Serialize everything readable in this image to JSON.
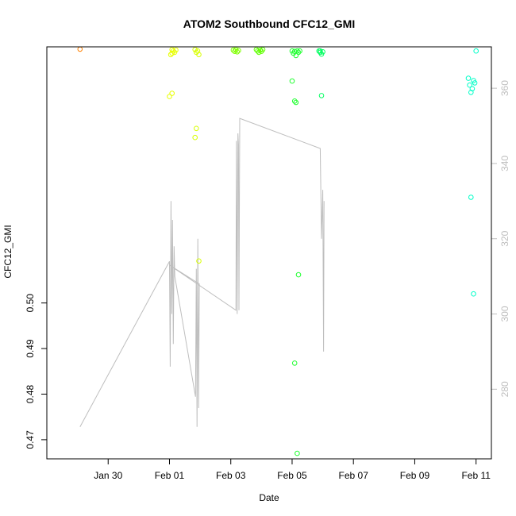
{
  "chart_data": {
    "type": "scatter",
    "title": "ATOM2 Southbound CFC12_GMI",
    "xlabel": "Date",
    "ylabel": "CFC12_GMI",
    "xlim": [
      "2017-01-28T00:00",
      "2017-02-11T12:00"
    ],
    "ylim_left": [
      0.4658,
      0.5562
    ],
    "ylim_right": [
      261.5,
      371.0
    ],
    "x_ticks": [
      {
        "date": "2017-01-30",
        "label": "Jan 30"
      },
      {
        "date": "2017-02-01",
        "label": "Feb 01"
      },
      {
        "date": "2017-02-03",
        "label": "Feb 03"
      },
      {
        "date": "2017-02-05",
        "label": "Feb 05"
      },
      {
        "date": "2017-02-07",
        "label": "Feb 07"
      },
      {
        "date": "2017-02-09",
        "label": "Feb 09"
      },
      {
        "date": "2017-02-11",
        "label": "Feb 11"
      }
    ],
    "y_ticks_left": [
      0.47,
      0.48,
      0.49,
      0.5
    ],
    "y_ticks_right": [
      280,
      300,
      320,
      340,
      360
    ],
    "grid": false,
    "series": [
      {
        "kind": "points",
        "points": [
          {
            "t": "2017-01-29T02:00",
            "y": 0.5557,
            "color": "#ff8000"
          },
          {
            "t": "2017-02-01T02:00",
            "y": 0.5548,
            "color": "#e8ff00"
          },
          {
            "t": "2017-02-01T02:00",
            "y": 0.5556,
            "color": "#e8ff00"
          },
          {
            "t": "2017-02-01T03:00",
            "y": 0.5553,
            "color": "#e8ff00"
          },
          {
            "t": "2017-02-01T04:00",
            "y": 0.555,
            "color": "#e8ff00"
          },
          {
            "t": "2017-02-01T01:00",
            "y": 0.5545,
            "color": "#e8ff00"
          },
          {
            "t": "2017-02-01T00:00",
            "y": 0.5453,
            "color": "#e8ff00"
          },
          {
            "t": "2017-02-01T02:00",
            "y": 0.546,
            "color": "#e8ff00"
          },
          {
            "t": "2017-02-01T05:00",
            "y": 0.5555,
            "color": "#e8ff00"
          },
          {
            "t": "2017-02-01T20:00",
            "y": 0.5556,
            "color": "#d8ff00"
          },
          {
            "t": "2017-02-01T21:00",
            "y": 0.555,
            "color": "#d8ff00"
          },
          {
            "t": "2017-02-01T22:00",
            "y": 0.5553,
            "color": "#d8ff00"
          },
          {
            "t": "2017-02-01T23:00",
            "y": 0.5545,
            "color": "#d8ff00"
          },
          {
            "t": "2017-02-01T21:00",
            "y": 0.5383,
            "color": "#d8ff00"
          },
          {
            "t": "2017-02-01T20:00",
            "y": 0.5363,
            "color": "#d8ff00"
          },
          {
            "t": "2017-02-01T23:00",
            "y": 0.5092,
            "color": "#d8ff00"
          },
          {
            "t": "2017-02-03T02:00",
            "y": 0.5555,
            "color": "#80ff00"
          },
          {
            "t": "2017-02-03T03:00",
            "y": 0.5552,
            "color": "#80ff00"
          },
          {
            "t": "2017-02-03T04:00",
            "y": 0.5556,
            "color": "#80ff00"
          },
          {
            "t": "2017-02-03T05:00",
            "y": 0.5551,
            "color": "#80ff00"
          },
          {
            "t": "2017-02-03T06:00",
            "y": 0.5554,
            "color": "#80ff00"
          },
          {
            "t": "2017-02-03T20:00",
            "y": 0.5556,
            "color": "#60ff00"
          },
          {
            "t": "2017-02-03T21:00",
            "y": 0.5553,
            "color": "#60ff00"
          },
          {
            "t": "2017-02-03T22:00",
            "y": 0.555,
            "color": "#60ff00"
          },
          {
            "t": "2017-02-03T23:00",
            "y": 0.5555,
            "color": "#60ff00"
          },
          {
            "t": "2017-02-04T00:00",
            "y": 0.5552,
            "color": "#60ff00"
          },
          {
            "t": "2017-02-04T01:00",
            "y": 0.5556,
            "color": "#60ff00"
          },
          {
            "t": "2017-02-05T00:00",
            "y": 0.5553,
            "color": "#20ff30"
          },
          {
            "t": "2017-02-05T01:00",
            "y": 0.5548,
            "color": "#20ff30"
          },
          {
            "t": "2017-02-05T02:00",
            "y": 0.5552,
            "color": "#20ff30"
          },
          {
            "t": "2017-02-05T03:00",
            "y": 0.5543,
            "color": "#20ff30"
          },
          {
            "t": "2017-02-05T04:00",
            "y": 0.5553,
            "color": "#20ff30"
          },
          {
            "t": "2017-02-05T05:00",
            "y": 0.555,
            "color": "#20ff30"
          },
          {
            "t": "2017-02-05T06:00",
            "y": 0.5553,
            "color": "#20ff30"
          },
          {
            "t": "2017-02-05T00:00",
            "y": 0.5487,
            "color": "#20ff30"
          },
          {
            "t": "2017-02-05T02:00",
            "y": 0.5443,
            "color": "#20ff30"
          },
          {
            "t": "2017-02-05T03:00",
            "y": 0.544,
            "color": "#20ff30"
          },
          {
            "t": "2017-02-05T05:00",
            "y": 0.5062,
            "color": "#20ff30"
          },
          {
            "t": "2017-02-05T02:00",
            "y": 0.4868,
            "color": "#20ff30"
          },
          {
            "t": "2017-02-05T04:00",
            "y": 0.467,
            "color": "#20ff30"
          },
          {
            "t": "2017-02-05T21:00",
            "y": 0.5553,
            "color": "#00ff60"
          },
          {
            "t": "2017-02-05T22:00",
            "y": 0.555,
            "color": "#00ff60"
          },
          {
            "t": "2017-02-05T23:00",
            "y": 0.5546,
            "color": "#00ff60"
          },
          {
            "t": "2017-02-06T00:00",
            "y": 0.5551,
            "color": "#00ff60"
          },
          {
            "t": "2017-02-05T22:00",
            "y": 0.5553,
            "color": "#00ff60"
          },
          {
            "t": "2017-02-05T23:00",
            "y": 0.5455,
            "color": "#00ff60"
          },
          {
            "t": "2017-02-10T18:00",
            "y": 0.5493,
            "color": "#00ffc8"
          },
          {
            "t": "2017-02-10T19:00",
            "y": 0.5478,
            "color": "#00ffc8"
          },
          {
            "t": "2017-02-10T20:00",
            "y": 0.5462,
            "color": "#00ffc8"
          },
          {
            "t": "2017-02-10T21:00",
            "y": 0.547,
            "color": "#00ffc8"
          },
          {
            "t": "2017-02-10T22:00",
            "y": 0.5488,
            "color": "#00ffc8"
          },
          {
            "t": "2017-02-10T23:00",
            "y": 0.5483,
            "color": "#00ffc8"
          },
          {
            "t": "2017-02-11T00:00",
            "y": 0.5553,
            "color": "#00ffc8"
          },
          {
            "t": "2017-02-10T20:00",
            "y": 0.5232,
            "color": "#00ffc8"
          },
          {
            "t": "2017-02-10T22:00",
            "y": 0.502,
            "color": "#00ffc8"
          }
        ]
      },
      {
        "kind": "line",
        "color": "#bebebe",
        "axis": "right",
        "points": [
          {
            "t": "2017-01-29T02:00",
            "y": 270
          },
          {
            "t": "2017-02-01T00:00",
            "y": 314
          },
          {
            "t": "2017-02-01T00:36",
            "y": 286
          },
          {
            "t": "2017-02-01T01:12",
            "y": 330
          },
          {
            "t": "2017-02-01T01:48",
            "y": 300
          },
          {
            "t": "2017-02-01T02:24",
            "y": 325
          },
          {
            "t": "2017-02-01T03:00",
            "y": 292
          },
          {
            "t": "2017-02-01T03:36",
            "y": 318
          },
          {
            "t": "2017-02-01T04:12",
            "y": 310
          },
          {
            "t": "2017-02-01T20:24",
            "y": 278
          },
          {
            "t": "2017-02-01T21:00",
            "y": 312
          },
          {
            "t": "2017-02-01T21:36",
            "y": 270
          },
          {
            "t": "2017-02-01T22:12",
            "y": 320
          },
          {
            "t": "2017-02-01T22:48",
            "y": 275
          },
          {
            "t": "2017-02-01T23:24",
            "y": 308
          },
          {
            "t": "2017-02-01T00:00",
            "y": 313
          },
          {
            "t": "2017-02-03T04:00",
            "y": 301
          },
          {
            "t": "2017-02-03T04:24",
            "y": 346
          },
          {
            "t": "2017-02-03T05:00",
            "y": 300
          },
          {
            "t": "2017-02-03T05:36",
            "y": 348
          },
          {
            "t": "2017-02-03T06:00",
            "y": 345
          },
          {
            "t": "2017-02-03T06:24",
            "y": 301
          },
          {
            "t": "2017-02-03T07:00",
            "y": 352
          },
          {
            "t": "2017-02-05T22:00",
            "y": 344
          },
          {
            "t": "2017-02-05T23:00",
            "y": 320
          },
          {
            "t": "2017-02-06T00:00",
            "y": 333
          },
          {
            "t": "2017-02-06T00:36",
            "y": 290
          },
          {
            "t": "2017-02-06T01:00",
            "y": 330
          }
        ]
      }
    ]
  }
}
